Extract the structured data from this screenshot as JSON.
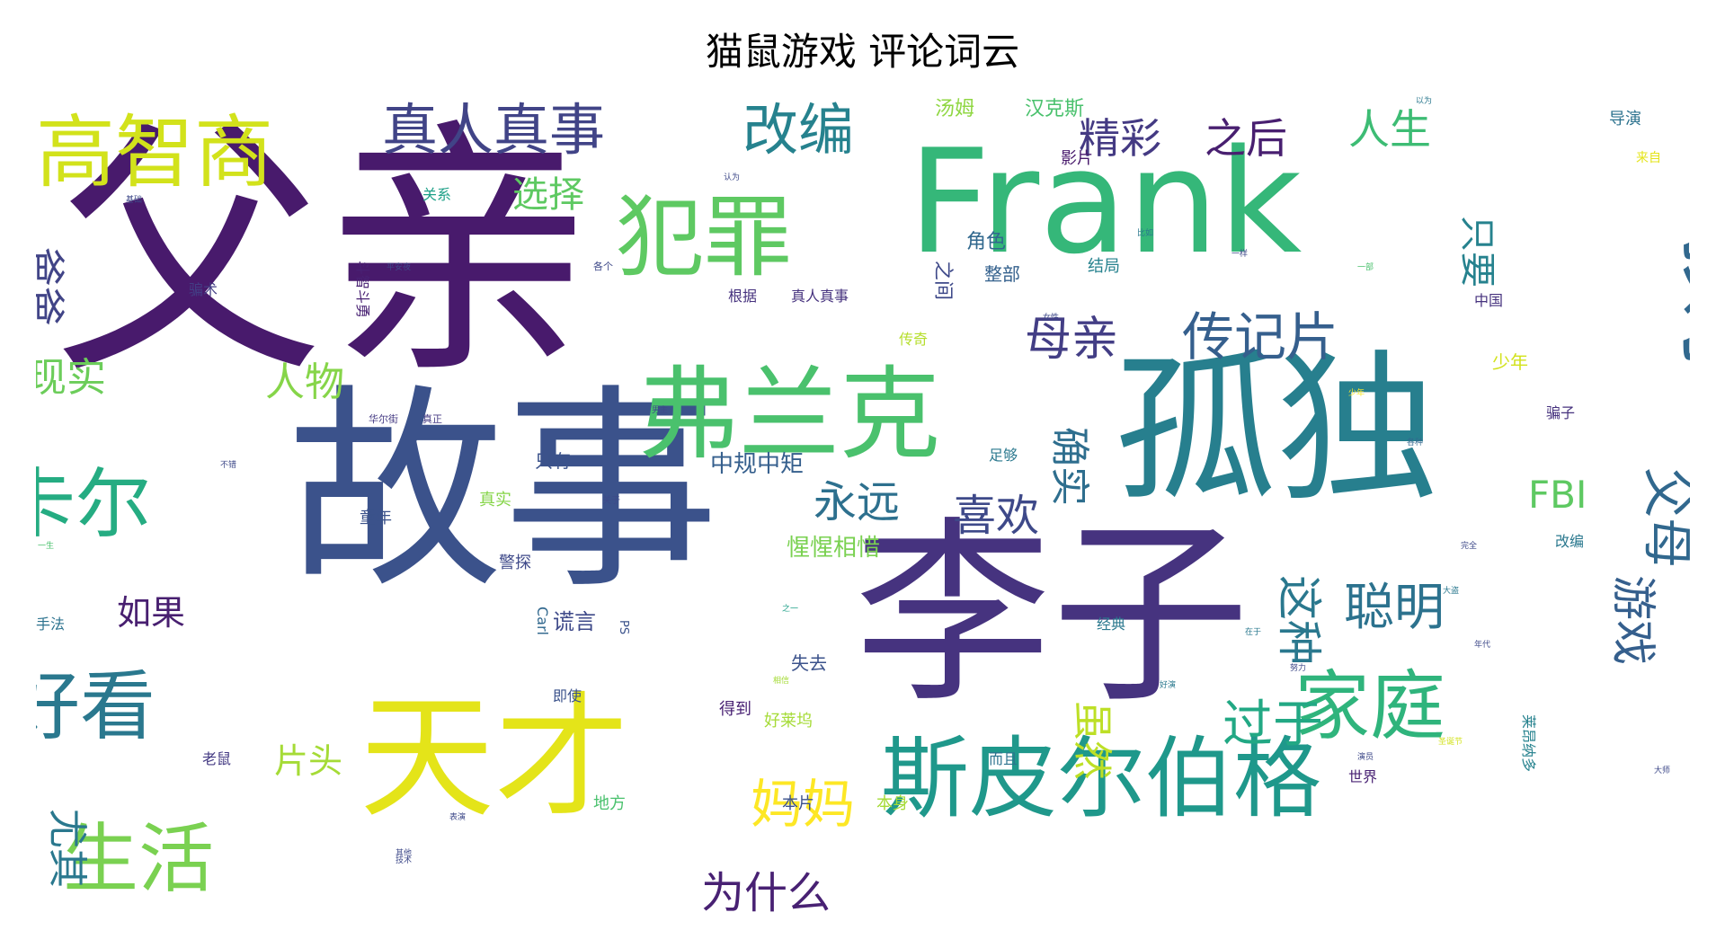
{
  "chart_data": {
    "type": "wordcloud",
    "title": "猫鼠游戏 评论词云",
    "colormap": "viridis",
    "colors": {
      "dark_purple": "#440154",
      "indigo": "#3b528b",
      "blue": "#31688e",
      "teal": "#21918c",
      "green": "#35b779",
      "lime": "#90d743",
      "yellow": "#fde725"
    },
    "words": [
      {
        "text": "父亲",
        "weight": 100,
        "color": "#481a6c"
      },
      {
        "text": "故事",
        "weight": 85,
        "color": "#3b528b"
      },
      {
        "text": "李子",
        "weight": 80,
        "color": "#46337f"
      },
      {
        "text": "Frank",
        "weight": 78,
        "color": "#35b779"
      },
      {
        "text": "孤独",
        "weight": 72,
        "color": "#277f8e"
      },
      {
        "text": "天才",
        "weight": 62,
        "color": "#e4e419"
      },
      {
        "text": "弗兰克",
        "weight": 54,
        "color": "#4ac16d"
      },
      {
        "text": "斯皮尔伯格",
        "weight": 50,
        "color": "#1f988b"
      },
      {
        "text": "犯罪",
        "weight": 46,
        "color": "#5ec962"
      },
      {
        "text": "高智商",
        "weight": 44,
        "color": "#d2e21b"
      },
      {
        "text": "卡尔",
        "weight": 40,
        "color": "#25ac82"
      },
      {
        "text": "家庭",
        "weight": 40,
        "color": "#2fb47c"
      },
      {
        "text": "好看",
        "weight": 40,
        "color": "#2a788e"
      },
      {
        "text": "生活",
        "weight": 40,
        "color": "#7ad151"
      },
      {
        "text": "孩子",
        "weight": 36,
        "color": "#31688e"
      },
      {
        "text": "真人真事",
        "weight": 28,
        "color": "#414487"
      },
      {
        "text": "改编",
        "weight": 28,
        "color": "#26828e"
      },
      {
        "text": "传记片",
        "weight": 26,
        "color": "#355f8d"
      },
      {
        "text": "母亲",
        "weight": 24,
        "color": "#433e85"
      },
      {
        "text": "精彩",
        "weight": 22,
        "color": "#443a83"
      },
      {
        "text": "之后",
        "weight": 22,
        "color": "#481f70"
      },
      {
        "text": "人生",
        "weight": 22,
        "color": "#3dbc74"
      },
      {
        "text": "妈妈",
        "weight": 26,
        "color": "#fde725"
      },
      {
        "text": "聪明",
        "weight": 24,
        "color": "#2c728e"
      },
      {
        "text": "过于",
        "weight": 24,
        "color": "#22a884"
      },
      {
        "text": "喜欢",
        "weight": 22,
        "color": "#3e4989"
      },
      {
        "text": "永远",
        "weight": 20,
        "color": "#2d708e"
      },
      {
        "text": "为什么",
        "weight": 20,
        "color": "#482173"
      },
      {
        "text": "父母",
        "weight": 22,
        "color": "#31688e"
      },
      {
        "text": "游戏",
        "weight": 20,
        "color": "#355f8d"
      },
      {
        "text": "这种",
        "weight": 20,
        "color": "#2a788e"
      },
      {
        "text": "虽然",
        "weight": 18,
        "color": "#bddf26"
      },
      {
        "text": "确实",
        "weight": 18,
        "color": "#2e6e8e"
      },
      {
        "text": "FBI",
        "weight": 18,
        "color": "#5ec962"
      },
      {
        "text": "爸爸",
        "weight": 18,
        "color": "#414487"
      },
      {
        "text": "尤其",
        "weight": 18,
        "color": "#2a788e"
      },
      {
        "text": "现实",
        "weight": 18,
        "color": "#6ccd5a"
      },
      {
        "text": "人物",
        "weight": 18,
        "color": "#86d549"
      },
      {
        "text": "选择",
        "weight": 16,
        "color": "#5ec962"
      },
      {
        "text": "如果",
        "weight": 16,
        "color": "#481f70"
      },
      {
        "text": "片头",
        "weight": 16,
        "color": "#a5db36"
      },
      {
        "text": "只要",
        "weight": 14,
        "color": "#26828e"
      },
      {
        "text": "中规中矩",
        "weight": 12,
        "color": "#355f8d"
      },
      {
        "text": "惺惺相惜",
        "weight": 12,
        "color": "#7ad151"
      },
      {
        "text": "谎言",
        "weight": 11,
        "color": "#3e4989"
      },
      {
        "text": "汤姆",
        "weight": 10,
        "color": "#90d743"
      },
      {
        "text": "汉克斯",
        "weight": 10,
        "color": "#4ac16d"
      },
      {
        "text": "影片",
        "weight": 8,
        "color": "#481a6c"
      },
      {
        "text": "导演",
        "weight": 8,
        "color": "#2c728e"
      },
      {
        "text": "来自",
        "weight": 7,
        "color": "#e4e419"
      },
      {
        "text": "角色",
        "weight": 9,
        "color": "#31688e"
      },
      {
        "text": "整部",
        "weight": 8,
        "color": "#34618d"
      },
      {
        "text": "结局",
        "weight": 8,
        "color": "#26828e"
      },
      {
        "text": "之间",
        "weight": 9,
        "color": "#3e4989"
      },
      {
        "text": "关系",
        "weight": 7,
        "color": "#1fa088"
      },
      {
        "text": "骗术",
        "weight": 7,
        "color": "#433e85"
      },
      {
        "text": "传奇",
        "weight": 7,
        "color": "#b5de2b"
      },
      {
        "text": "根据",
        "weight": 7,
        "color": "#46327e"
      },
      {
        "text": "真人真事",
        "weight": 7,
        "color": "#46327e"
      },
      {
        "text": "中国",
        "weight": 7,
        "color": "#46327e"
      },
      {
        "text": "少年",
        "weight": 8,
        "color": "#d2e21b"
      },
      {
        "text": "骗子",
        "weight": 7,
        "color": "#46327e"
      },
      {
        "text": "只有",
        "weight": 7,
        "color": "#3b528b"
      },
      {
        "text": "真实",
        "weight": 7,
        "color": "#86d549"
      },
      {
        "text": "童年",
        "weight": 7,
        "color": "#3b528b"
      },
      {
        "text": "警探",
        "weight": 7,
        "color": "#3e4989"
      },
      {
        "text": "足够",
        "weight": 7,
        "color": "#2a788e"
      },
      {
        "text": "改编",
        "weight": 7,
        "color": "#2a788e"
      },
      {
        "text": "经典",
        "weight": 7,
        "color": "#2a788e"
      },
      {
        "text": "失去",
        "weight": 8,
        "color": "#3b528b"
      },
      {
        "text": "即使",
        "weight": 6,
        "color": "#3b528b"
      },
      {
        "text": "得到",
        "weight": 7,
        "color": "#482173"
      },
      {
        "text": "好莱坞",
        "weight": 7,
        "color": "#a5db36"
      },
      {
        "text": "老鼠",
        "weight": 7,
        "color": "#443a83"
      },
      {
        "text": "地方",
        "weight": 7,
        "color": "#4ac16d"
      },
      {
        "text": "本片",
        "weight": 7,
        "color": "#3b528b"
      },
      {
        "text": "本身",
        "weight": 7,
        "color": "#a5db36"
      },
      {
        "text": "而且",
        "weight": 7,
        "color": "#2c728e"
      },
      {
        "text": "世界",
        "weight": 7,
        "color": "#482173"
      },
      {
        "text": "莱昂纳多",
        "weight": 7,
        "color": "#26828e"
      },
      {
        "text": "手法",
        "weight": 7,
        "color": "#2c728e"
      },
      {
        "text": "斗智斗勇",
        "weight": 7,
        "color": "#482173"
      },
      {
        "text": "华尔街",
        "weight": 5,
        "color": "#443a83"
      },
      {
        "text": "真正",
        "weight": 5,
        "color": "#443a83"
      },
      {
        "text": "各个",
        "weight": 5,
        "color": "#3e4989"
      },
      {
        "text": "Carl",
        "weight": 6,
        "color": "#31688e"
      },
      {
        "text": "PS",
        "weight": 5,
        "color": "#3b528b"
      },
      {
        "text": "之一",
        "weight": 4,
        "color": "#1fa088"
      },
      {
        "text": "基础",
        "weight": 4,
        "color": "#3e4989"
      },
      {
        "text": "一生",
        "weight": 4,
        "color": "#4ac16d"
      },
      {
        "text": "关于",
        "weight": 4,
        "color": "#3e4989"
      },
      {
        "text": "在于",
        "weight": 4,
        "color": "#2a788e"
      },
      {
        "text": "女性",
        "weight": 4,
        "color": "#3e4989"
      },
      {
        "text": "不错",
        "weight": 4,
        "color": "#3e4989"
      },
      {
        "text": "男主",
        "weight": 4,
        "color": "#3e4989"
      },
      {
        "text": "好演",
        "weight": 4,
        "color": "#2a788e"
      },
      {
        "text": "演员",
        "weight": 4,
        "color": "#3e4989"
      },
      {
        "text": "完全",
        "weight": 4,
        "color": "#3e4989"
      },
      {
        "text": "大盗",
        "weight": 4,
        "color": "#2a788e"
      },
      {
        "text": "大师",
        "weight": 4,
        "color": "#3e4989"
      },
      {
        "text": "其他",
        "weight": 4,
        "color": "#3e4989"
      },
      {
        "text": "平安夜",
        "weight": 4,
        "color": "#3e4989"
      },
      {
        "text": "以为",
        "weight": 4,
        "color": "#2a788e"
      },
      {
        "text": "认为",
        "weight": 4,
        "color": "#3e4989"
      },
      {
        "text": "少年",
        "weight": 4,
        "color": "#fde725"
      },
      {
        "text": "年代",
        "weight": 4,
        "color": "#3e4989"
      },
      {
        "text": "表演",
        "weight": 4,
        "color": "#3e4989"
      },
      {
        "text": "比如",
        "weight": 4,
        "color": "#2a788e"
      },
      {
        "text": "各种",
        "weight": 4,
        "color": "#31688e"
      },
      {
        "text": "努力",
        "weight": 4,
        "color": "#3e4989"
      },
      {
        "text": "圣诞节",
        "weight": 4,
        "color": "#d2e21b"
      },
      {
        "text": "相信",
        "weight": 4,
        "color": "#a5db36"
      },
      {
        "text": "技术",
        "weight": 4,
        "color": "#3e4989"
      },
      {
        "text": "一部",
        "weight": 4,
        "color": "#4ac16d"
      },
      {
        "text": "一样",
        "weight": 4,
        "color": "#3e4989"
      }
    ]
  }
}
